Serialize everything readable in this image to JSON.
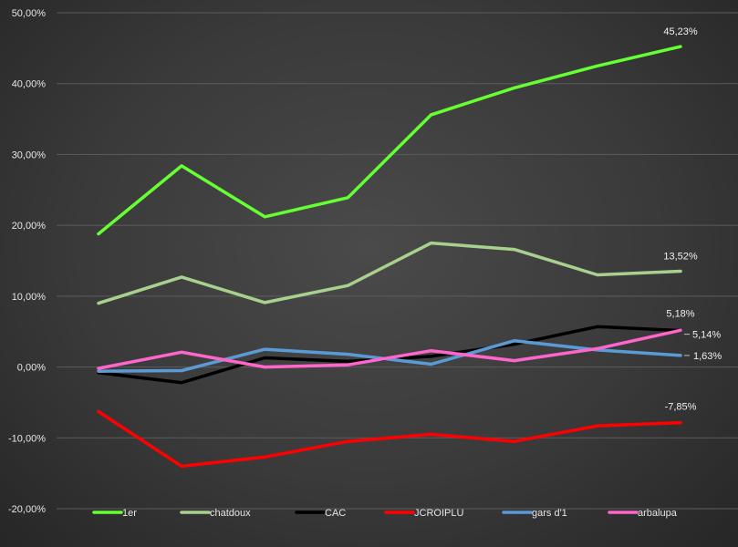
{
  "chart_data": {
    "type": "line",
    "x": [
      1,
      2,
      3,
      4,
      5,
      6,
      7,
      8
    ],
    "ylim": [
      -20,
      50
    ],
    "yticks": [
      -20,
      -10,
      0,
      10,
      20,
      30,
      40,
      50
    ],
    "ytick_labels": [
      "-20,00%",
      "-10,00%",
      "0,00%",
      "10,00%",
      "20,00%",
      "30,00%",
      "40,00%",
      "50,00%"
    ],
    "grid": true,
    "legend_position": "bottom",
    "series": [
      {
        "name": "1er",
        "color": "#66ff33",
        "values": [
          18.8,
          28.4,
          21.2,
          23.9,
          35.6,
          39.4,
          42.5,
          45.23
        ],
        "end_label": "45,23%"
      },
      {
        "name": "chatdoux",
        "color": "#a9d18e",
        "values": [
          9.0,
          12.7,
          9.1,
          11.5,
          17.5,
          16.6,
          13.0,
          13.52
        ],
        "end_label": "13,52%"
      },
      {
        "name": "CAC",
        "color": "#000000",
        "values": [
          -0.8,
          -2.2,
          1.3,
          0.8,
          1.5,
          3.2,
          5.7,
          5.14
        ],
        "end_label": "5,14%"
      },
      {
        "name": "JCROIPLU",
        "color": "#ff0000",
        "values": [
          -6.3,
          -14.0,
          -12.7,
          -10.5,
          -9.5,
          -10.5,
          -8.3,
          -7.85
        ],
        "end_label": "-7,85%"
      },
      {
        "name": "gars d'1",
        "color": "#5b9bd5",
        "values": [
          -0.6,
          -0.5,
          2.5,
          1.8,
          0.4,
          3.7,
          2.4,
          1.63
        ],
        "end_label": "1,63%"
      },
      {
        "name": "arbalupa",
        "color": "#ff66cc",
        "values": [
          -0.2,
          2.1,
          0.0,
          0.3,
          2.3,
          0.9,
          2.6,
          5.18
        ],
        "end_label": "5,18%"
      }
    ]
  }
}
